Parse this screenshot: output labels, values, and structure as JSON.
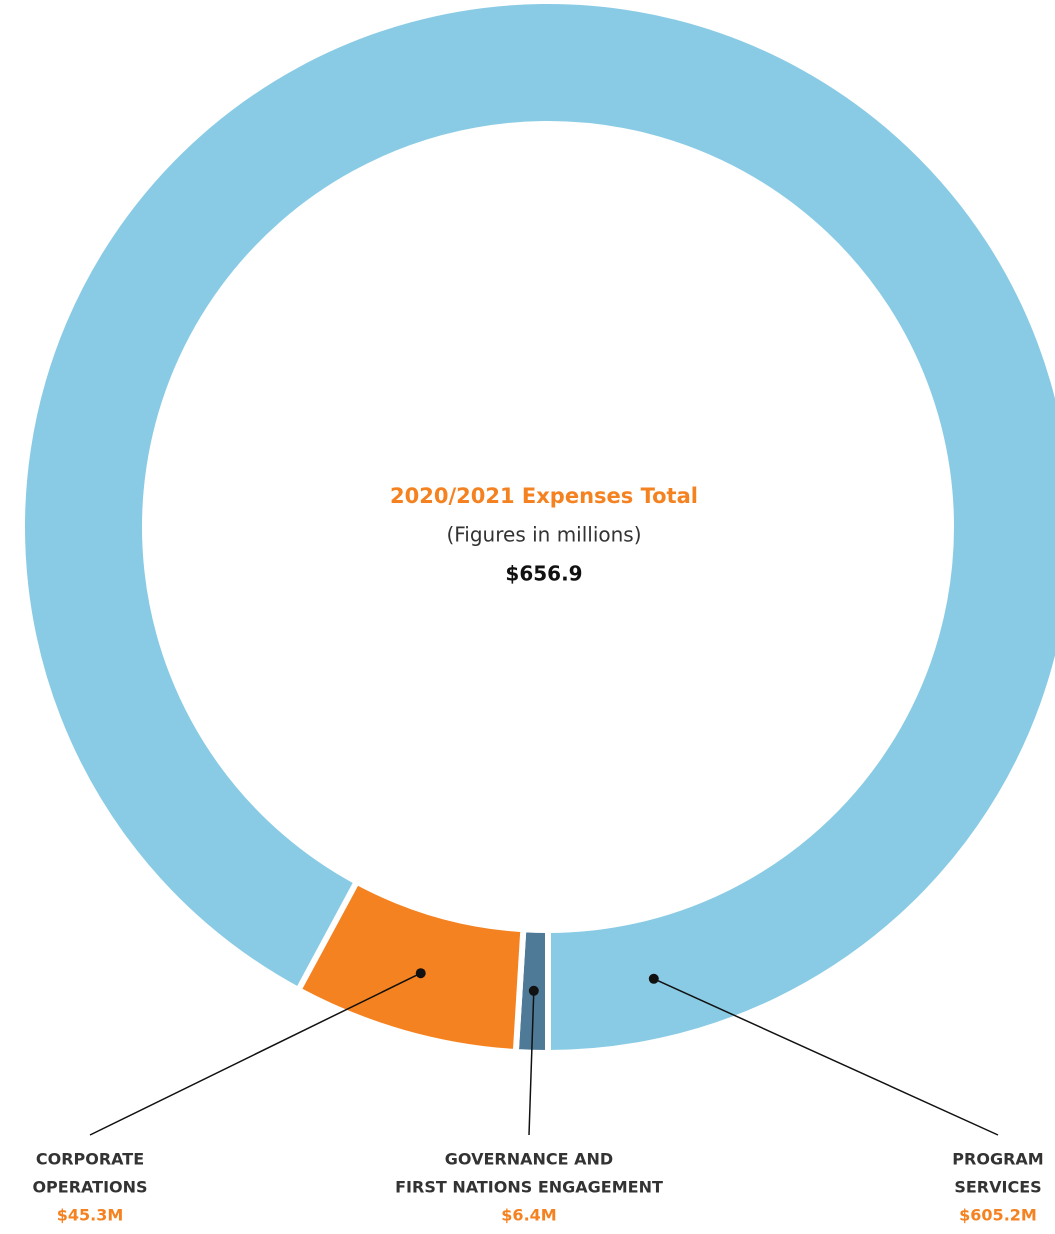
{
  "chart_data": {
    "type": "donut",
    "title": "2020/2021 Expenses Total",
    "subtitle": "(Figures in millions)",
    "total": {
      "value": 656.9,
      "label": "$656.9"
    },
    "categories": [
      [
        "GOVERNANCE AND",
        "FIRST NATIONS ENGAGEMENT"
      ],
      [
        "CORPORATE",
        "OPERATIONS"
      ],
      [
        "PROGRAM",
        "SERVICES"
      ]
    ],
    "values": [
      6.4,
      45.3,
      605.2
    ],
    "value_labels": [
      "$6.4M",
      "$45.3M",
      "$605.2M"
    ],
    "colors": [
      "#4e7a98",
      "#f58220",
      "#89cbe5"
    ]
  }
}
